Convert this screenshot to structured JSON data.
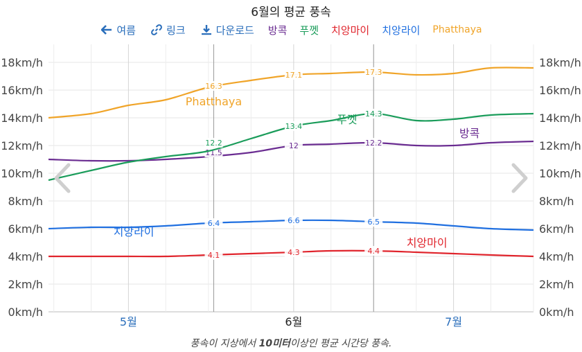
{
  "title": "6월의 평균 풍속",
  "toolbar": {
    "summer_label": "여름",
    "link_label": "링크",
    "download_label": "다운로드"
  },
  "icons": {
    "back": "arrow-left-icon",
    "link": "link-icon",
    "download": "download-icon",
    "prev": "chevron-left-icon",
    "next": "chevron-right-icon"
  },
  "caption": {
    "before": "풍속이 지상에서 ",
    "bold": "10미터",
    "after": "이상인 평균 시간당 풍속."
  },
  "chart_data": {
    "type": "line",
    "title": "6월의 평균 풍속",
    "x_tick_labels": [
      "5월",
      "6월",
      "7월"
    ],
    "x_range": [
      "2024-04-16",
      "2024-07-16"
    ],
    "x_ticks": [
      "2024-05-01",
      "2024-06-01",
      "2024-07-01"
    ],
    "minor_ticks": [
      "2024-04-17",
      "2024-04-24",
      "2024-05-08",
      "2024-05-16",
      "2024-05-24",
      "2024-06-08",
      "2024-06-16",
      "2024-06-24",
      "2024-07-08",
      "2024-07-16"
    ],
    "current_month_bounds": [
      "2024-05-17",
      "2024-06-16"
    ],
    "y_range": [
      0,
      19
    ],
    "y_ticks": [
      0,
      2,
      4,
      6,
      8,
      10,
      12,
      14,
      16,
      18
    ],
    "y_unit": "km/h",
    "grid": true,
    "legend_position": "top",
    "series": [
      {
        "name": "방콕",
        "color": "#6a2c91",
        "x": [
          "2024-04-16",
          "2024-04-24",
          "2024-05-01",
          "2024-05-08",
          "2024-05-16",
          "2024-05-24",
          "2024-06-01",
          "2024-06-08",
          "2024-06-16",
          "2024-06-24",
          "2024-07-01",
          "2024-07-08",
          "2024-07-16"
        ],
        "y": [
          11.0,
          10.9,
          10.9,
          11.0,
          11.2,
          11.5,
          12.0,
          12.1,
          12.2,
          12.0,
          12.0,
          12.2,
          12.3
        ],
        "marker_x": [
          "2024-05-17",
          "2024-06-01",
          "2024-06-16"
        ],
        "marker_y": [
          11.5,
          12.0,
          12.2
        ],
        "label": "방콕",
        "label_at": [
          "2024-07-04",
          12.6
        ]
      },
      {
        "name": "푸껫",
        "color": "#1a9c5a",
        "x": [
          "2024-04-16",
          "2024-04-24",
          "2024-05-01",
          "2024-05-08",
          "2024-05-16",
          "2024-05-24",
          "2024-06-01",
          "2024-06-08",
          "2024-06-16",
          "2024-06-24",
          "2024-07-01",
          "2024-07-08",
          "2024-07-16"
        ],
        "y": [
          9.5,
          10.2,
          10.8,
          11.2,
          11.6,
          12.5,
          13.4,
          13.8,
          14.3,
          13.8,
          13.9,
          14.2,
          14.3
        ],
        "marker_x": [
          "2024-05-17",
          "2024-06-01",
          "2024-06-16"
        ],
        "marker_y": [
          12.2,
          13.4,
          14.3
        ],
        "label": "푸껫",
        "label_at": [
          "2024-06-11",
          13.6
        ]
      },
      {
        "name": "치앙마이",
        "color": "#e0242c",
        "x": [
          "2024-04-16",
          "2024-04-24",
          "2024-05-01",
          "2024-05-08",
          "2024-05-16",
          "2024-05-24",
          "2024-06-01",
          "2024-06-08",
          "2024-06-16",
          "2024-06-24",
          "2024-07-01",
          "2024-07-08",
          "2024-07-16"
        ],
        "y": [
          4.0,
          4.0,
          4.0,
          4.0,
          4.1,
          4.2,
          4.3,
          4.4,
          4.4,
          4.3,
          4.2,
          4.1,
          4.0
        ],
        "marker_x": [
          "2024-05-17",
          "2024-06-01",
          "2024-06-16"
        ],
        "marker_y": [
          4.1,
          4.3,
          4.4
        ],
        "label": "치앙마이",
        "label_at": [
          "2024-06-26",
          4.7
        ]
      },
      {
        "name": "치앙라이",
        "color": "#1f6fe0",
        "x": [
          "2024-04-16",
          "2024-04-24",
          "2024-05-01",
          "2024-05-08",
          "2024-05-16",
          "2024-05-24",
          "2024-06-01",
          "2024-06-08",
          "2024-06-16",
          "2024-06-24",
          "2024-07-01",
          "2024-07-08",
          "2024-07-16"
        ],
        "y": [
          6.0,
          6.1,
          6.1,
          6.2,
          6.4,
          6.5,
          6.6,
          6.6,
          6.5,
          6.4,
          6.2,
          6.0,
          5.9
        ],
        "marker_x": [
          "2024-05-17",
          "2024-06-01",
          "2024-06-16"
        ],
        "marker_y": [
          6.4,
          6.6,
          6.5
        ],
        "label": "치앙라이",
        "label_at": [
          "2024-05-02",
          5.5
        ]
      },
      {
        "name": "Phatthaya",
        "color": "#f0a428",
        "x": [
          "2024-04-16",
          "2024-04-24",
          "2024-05-01",
          "2024-05-08",
          "2024-05-16",
          "2024-05-24",
          "2024-06-01",
          "2024-06-08",
          "2024-06-16",
          "2024-06-24",
          "2024-07-01",
          "2024-07-08",
          "2024-07-16"
        ],
        "y": [
          14.0,
          14.3,
          14.9,
          15.3,
          16.2,
          16.7,
          17.1,
          17.2,
          17.3,
          17.1,
          17.2,
          17.6,
          17.6
        ],
        "marker_x": [
          "2024-05-17",
          "2024-06-01",
          "2024-06-16"
        ],
        "marker_y": [
          16.3,
          17.1,
          17.3
        ],
        "label": "Phatthaya",
        "label_at": [
          "2024-05-17",
          14.9
        ]
      }
    ]
  }
}
